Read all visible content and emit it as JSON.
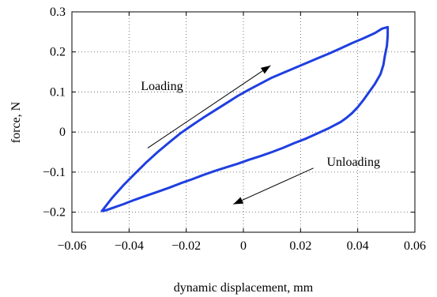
{
  "chart_data": {
    "type": "line",
    "title": "",
    "xlabel": "dynamic displacement, mm",
    "ylabel": "force, N",
    "xlim": [
      -0.06,
      0.06
    ],
    "ylim": [
      -0.25,
      0.3
    ],
    "xticks": [
      -0.06,
      -0.04,
      -0.02,
      0,
      0.02,
      0.04,
      0.06
    ],
    "xtick_labels": [
      "−0.06",
      "−0.04",
      "−0.02",
      "0",
      "0.02",
      "0.04",
      "0.06"
    ],
    "yticks": [
      -0.2,
      -0.1,
      0,
      0.1,
      0.2,
      0.3
    ],
    "ytick_labels": [
      "−0.2",
      "−0.1",
      "0",
      "0.1",
      "0.2",
      "0.3"
    ],
    "grid": true,
    "legend": "none",
    "series_color": "#1f3fe0",
    "series": [
      {
        "x": [
          -0.0495,
          -0.046,
          -0.042,
          -0.038,
          -0.034,
          -0.03,
          -0.026,
          -0.022,
          -0.018,
          -0.014,
          -0.01,
          -0.006,
          -0.002,
          0.002,
          0.006,
          0.01,
          0.014,
          0.018,
          0.022,
          0.026,
          0.03,
          0.034,
          0.038,
          0.042,
          0.046,
          0.0485,
          0.0505,
          0.0505,
          0.0502,
          0.0495,
          0.049,
          0.048,
          0.046,
          0.044,
          0.042,
          0.04,
          0.038,
          0.036,
          0.034,
          0.03,
          0.026,
          0.022,
          0.018,
          0.014,
          0.01,
          0.006,
          0.002,
          -0.002,
          -0.006,
          -0.01,
          -0.014,
          -0.018,
          -0.022,
          -0.026,
          -0.03,
          -0.034,
          -0.038,
          -0.042,
          -0.046,
          -0.048,
          -0.0495
        ],
        "y": [
          -0.197,
          -0.165,
          -0.133,
          -0.104,
          -0.076,
          -0.05,
          -0.026,
          -0.003,
          0.017,
          0.036,
          0.054,
          0.072,
          0.09,
          0.106,
          0.121,
          0.136,
          0.148,
          0.16,
          0.172,
          0.184,
          0.196,
          0.209,
          0.222,
          0.234,
          0.247,
          0.258,
          0.262,
          0.24,
          0.215,
          0.19,
          0.168,
          0.145,
          0.12,
          0.1,
          0.08,
          0.062,
          0.047,
          0.035,
          0.025,
          0.01,
          -0.003,
          -0.016,
          -0.027,
          -0.039,
          -0.05,
          -0.06,
          -0.069,
          -0.079,
          -0.088,
          -0.097,
          -0.107,
          -0.118,
          -0.128,
          -0.139,
          -0.149,
          -0.159,
          -0.169,
          -0.18,
          -0.19,
          -0.195,
          -0.197
        ]
      }
    ],
    "annotations": [
      {
        "text": "Loading",
        "x": -0.0285,
        "y": 0.115,
        "arrow_from": [
          -0.0335,
          -0.04
        ],
        "arrow_to": [
          0.0095,
          0.166
        ]
      },
      {
        "text": "Unloading",
        "x": 0.0385,
        "y": -0.075,
        "arrow_from": [
          0.0245,
          -0.09
        ],
        "arrow_to": [
          -0.0035,
          -0.18
        ]
      }
    ]
  }
}
